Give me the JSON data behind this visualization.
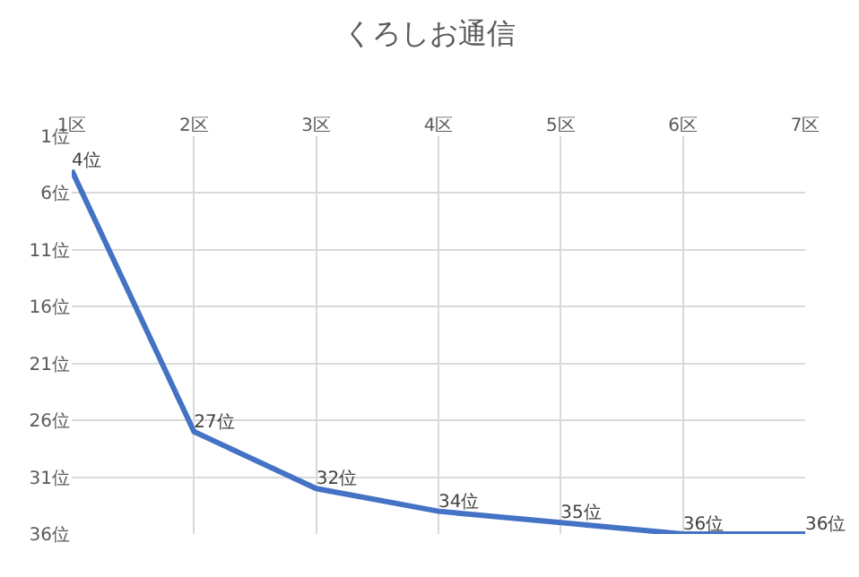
{
  "chart_data": {
    "type": "line",
    "title": "くろしお通信",
    "categories": [
      "1区",
      "2区",
      "3区",
      "4区",
      "5区",
      "6区",
      "7区"
    ],
    "series": [
      {
        "color": "#4472c4",
        "values": [
          4,
          27,
          32,
          34,
          35,
          36,
          36
        ],
        "value_labels": [
          "4位",
          "27位",
          "32位",
          "34位",
          "35位",
          "36位",
          "36位"
        ]
      }
    ],
    "ylim": [
      36,
      1
    ],
    "yticks": [
      {
        "value": 1,
        "label": "1位"
      },
      {
        "value": 6,
        "label": "6位"
      },
      {
        "value": 11,
        "label": "11位"
      },
      {
        "value": 16,
        "label": "16位"
      },
      {
        "value": 21,
        "label": "21位"
      },
      {
        "value": 26,
        "label": "26位"
      },
      {
        "value": 31,
        "label": "31位"
      },
      {
        "value": 36,
        "label": "36位"
      }
    ],
    "grid": true,
    "marker": "none",
    "line_style": "solid"
  }
}
